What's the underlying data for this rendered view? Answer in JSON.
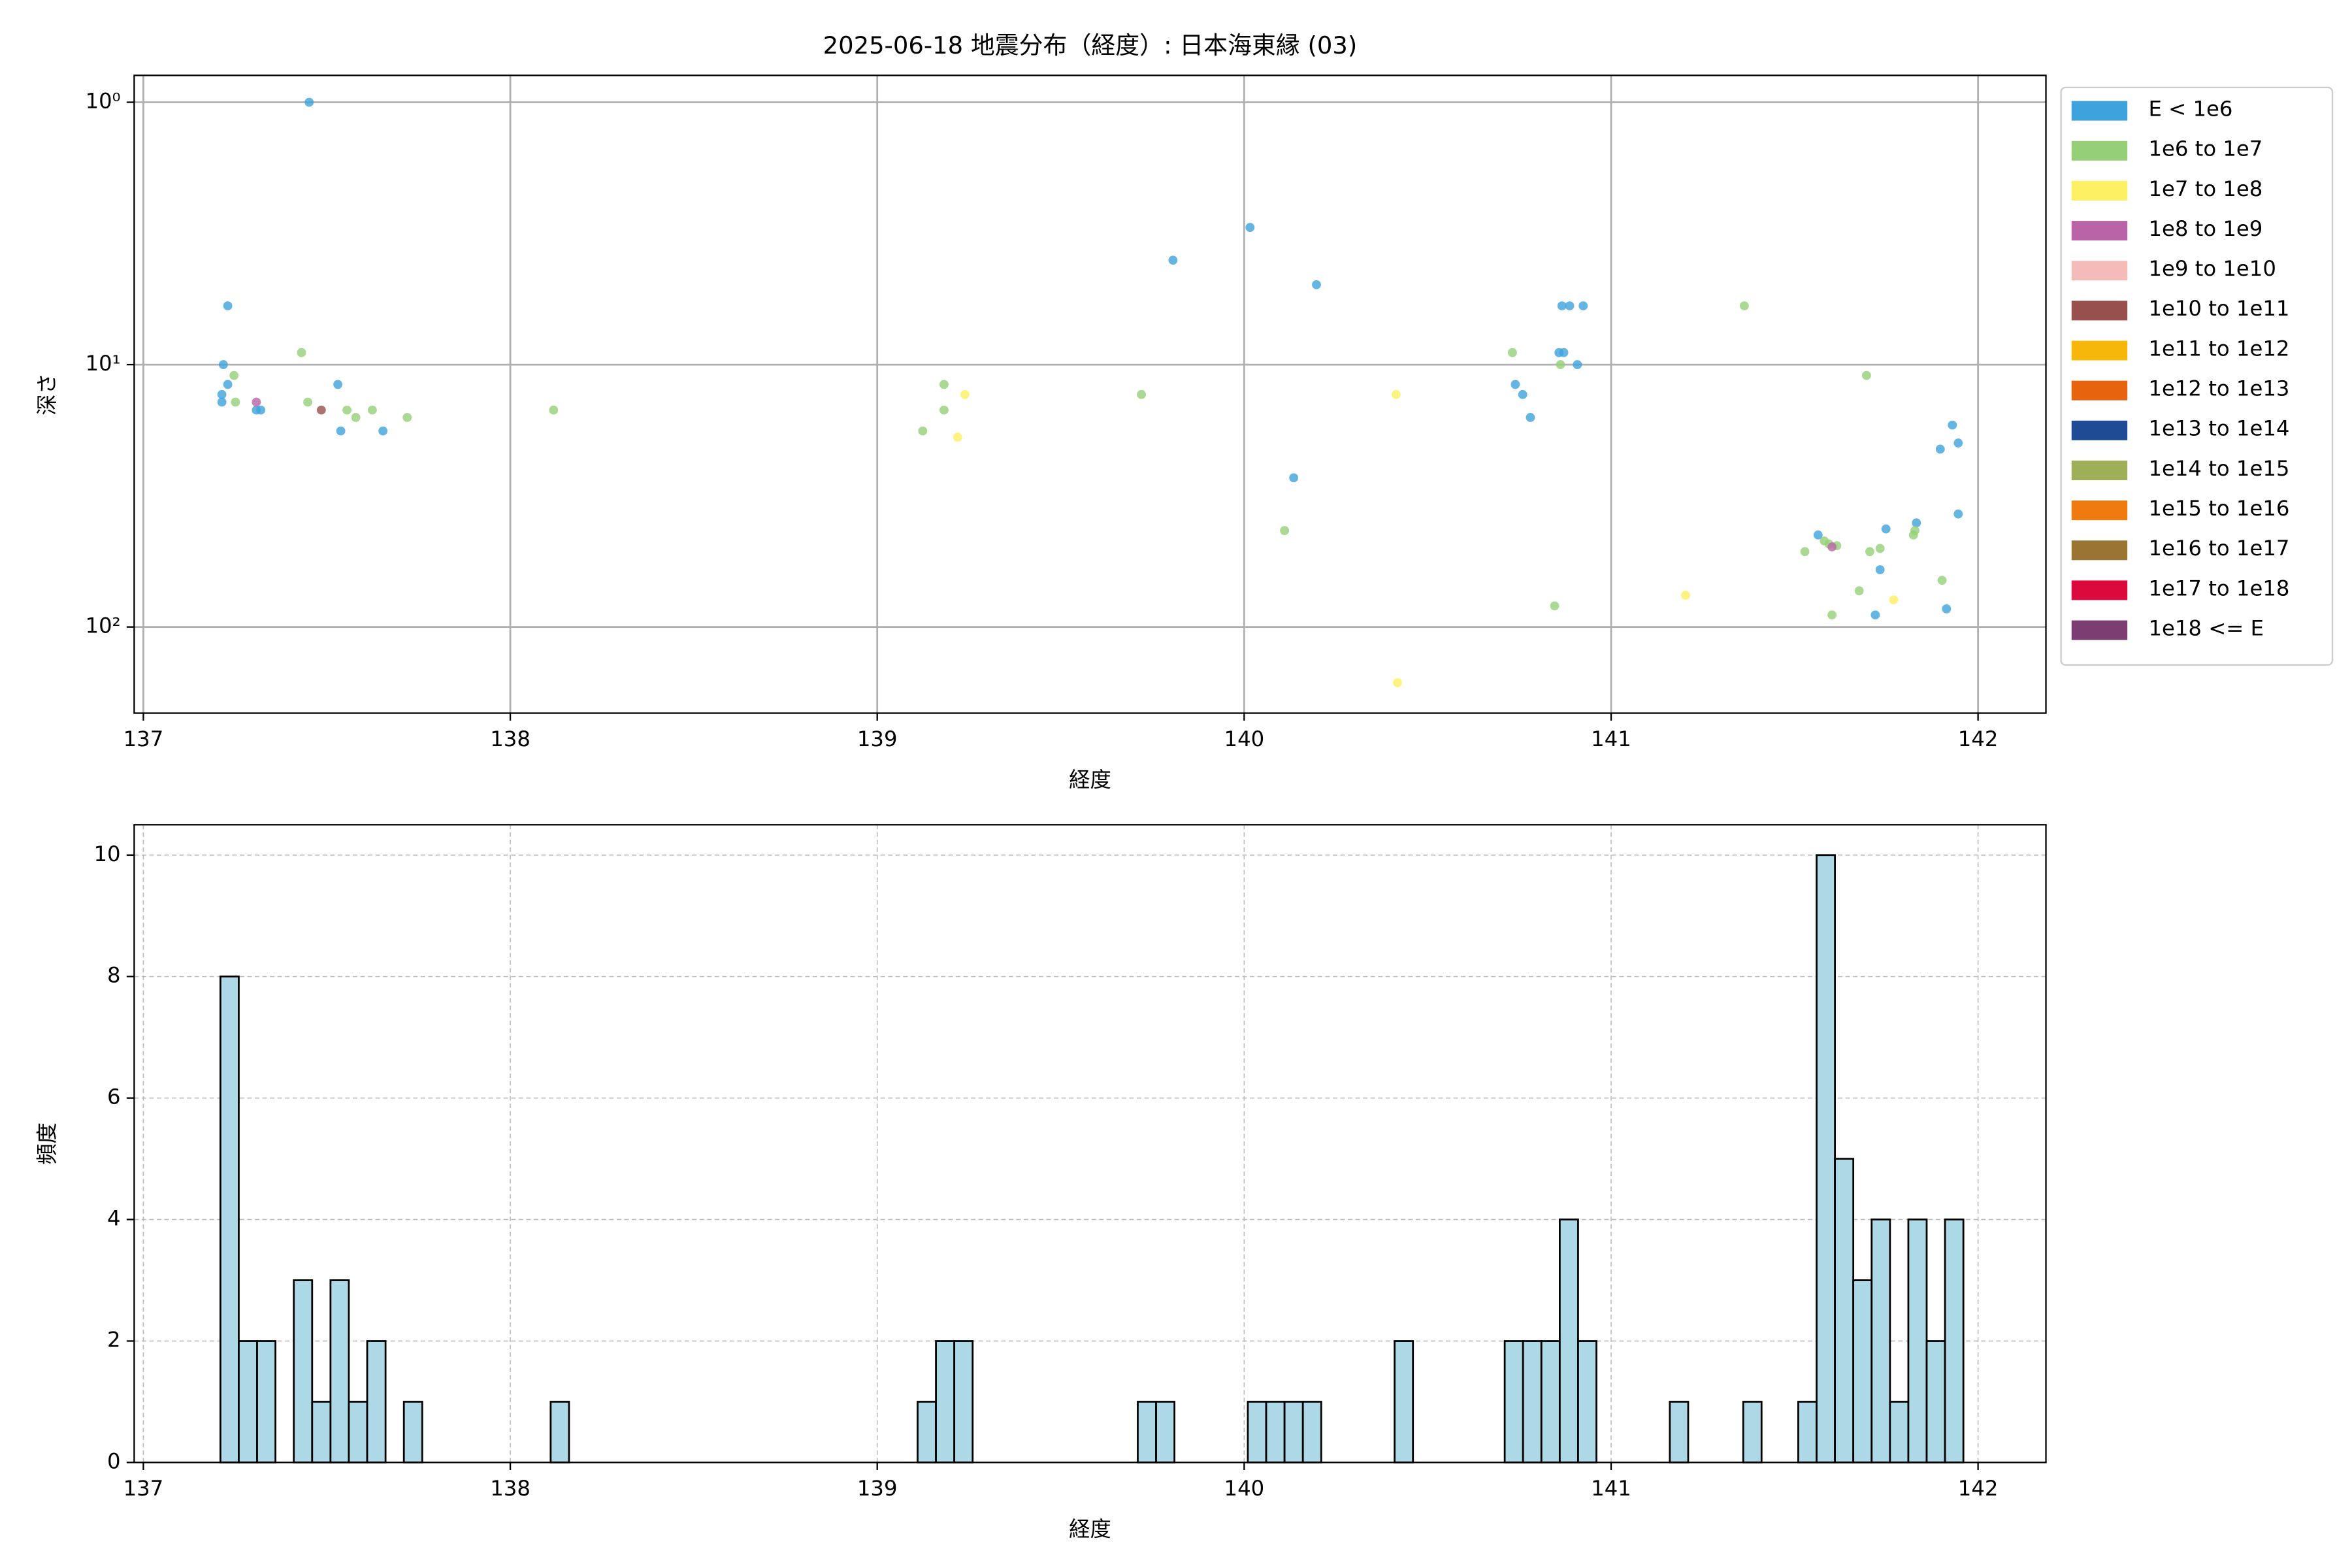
{
  "chart_data": [
    {
      "type": "scatter",
      "title": "2025-06-18 地震分布（経度）: 日本海東縁 (03)",
      "x_label": "経度",
      "y_label": "深さ",
      "xlim": [
        136.975,
        142.185
      ],
      "xticks": [
        137,
        138,
        139,
        140,
        141,
        142
      ],
      "ylim": [
        213,
        0.79
      ],
      "yscale": "log",
      "yticks": [
        {
          "value": 1,
          "label": "10⁰"
        },
        {
          "value": 10,
          "label": "10¹"
        },
        {
          "value": 100,
          "label": "10²"
        }
      ],
      "grid": true,
      "grid_style": "solid",
      "legend": "outside upper right",
      "series": [
        {
          "name": "E < 1e6",
          "color": "#3ea3dc",
          "x": [
            137.452,
            137.23,
            137.218,
            137.214,
            137.23,
            137.214,
            137.308,
            137.32,
            137.53,
            137.538,
            137.653,
            139.806,
            140.016,
            140.197,
            140.135,
            140.739,
            140.759,
            140.78,
            140.866,
            140.887,
            140.924,
            140.858,
            140.871,
            140.908,
            141.897,
            141.93,
            141.946,
            141.946,
            141.749,
            141.733,
            141.72,
            141.914,
            141.832,
            141.564
          ],
          "values": [
            1.0,
            5.97,
            10,
            13.0,
            11.9,
            13.9,
            14.9,
            14.9,
            11.9,
            17.9,
            17.9,
            4.0,
            3.0,
            4.96,
            27.0,
            11.9,
            13.0,
            15.9,
            5.97,
            5.97,
            5.97,
            9.0,
            9.0,
            10,
            21.0,
            17.0,
            19.9,
            37.1,
            42.3,
            60.5,
            90,
            85.3,
            40.1,
            44.6
          ]
        },
        {
          "name": "1e6 to 1e7",
          "color": "#95cf78",
          "x": [
            137.431,
            137.247,
            137.251,
            137.448,
            137.555,
            137.579,
            137.624,
            137.719,
            138.118,
            139.124,
            139.182,
            139.182,
            139.72,
            140.11,
            140.731,
            140.862,
            140.846,
            141.363,
            141.696,
            141.528,
            141.581,
            141.594,
            141.615,
            141.705,
            141.733,
            141.676,
            141.602,
            141.828,
            141.824,
            141.902
          ],
          "values": [
            9.0,
            11.0,
            13.9,
            13.9,
            14.9,
            15.9,
            14.9,
            15.9,
            14.9,
            17.9,
            11.9,
            14.9,
            13.0,
            42.9,
            9.0,
            10,
            83.1,
            5.97,
            11.0,
            51.6,
            47.0,
            48.3,
            49.0,
            51.6,
            50.2,
            72.8,
            90,
            42.9,
            44.6,
            66.4
          ]
        },
        {
          "name": "1e7 to 1e8",
          "color": "#fdf062",
          "x": [
            139.239,
            139.219,
            140.414,
            140.418,
            141.203,
            141.77
          ],
          "values": [
            13.0,
            18.9,
            13.0,
            163,
            75.7,
            78.8
          ]
        },
        {
          "name": "1e8 to 1e9",
          "color": "#b964a6",
          "x": [
            137.308,
            141.602
          ],
          "values": [
            13.9,
            49.5
          ]
        },
        {
          "name": "1e9 to 1e10",
          "color": "#f4bbb8",
          "x": [],
          "values": []
        },
        {
          "name": "1e10 to 1e11",
          "color": "#97504c",
          "x": [
            137.485
          ],
          "values": [
            14.9
          ]
        },
        {
          "name": "1e11 to 1e12",
          "color": "#f7b70a",
          "x": [],
          "values": []
        },
        {
          "name": "1e12 to 1e13",
          "color": "#e7630e",
          "x": [],
          "values": []
        },
        {
          "name": "1e13 to 1e14",
          "color": "#1f4b94",
          "x": [],
          "values": []
        },
        {
          "name": "1e14 to 1e15",
          "color": "#9eb057",
          "x": [],
          "values": []
        },
        {
          "name": "1e15 to 1e16",
          "color": "#ee7a10",
          "x": [],
          "values": []
        },
        {
          "name": "1e16 to 1e17",
          "color": "#9a7433",
          "x": [],
          "values": []
        },
        {
          "name": "1e17 to 1e18",
          "color": "#dc0a3c",
          "x": [],
          "values": []
        },
        {
          "name": "1e18 <= E",
          "color": "#7c3e72",
          "x": [],
          "values": []
        }
      ]
    },
    {
      "type": "histogram",
      "x_label": "経度",
      "y_label": "頻度",
      "xlim": [
        136.975,
        142.185
      ],
      "xticks": [
        137,
        138,
        139,
        140,
        141,
        142
      ],
      "ylim": [
        0,
        10.5
      ],
      "yticks": [
        0,
        2,
        4,
        6,
        8,
        10
      ],
      "grid": true,
      "grid_style": "dashed",
      "color": "#add8e6",
      "edgecolor": "#000000",
      "bins": [
        137.21,
        137.26,
        137.31,
        137.36,
        137.41,
        137.46,
        137.51,
        137.56,
        137.61,
        137.66,
        137.71,
        137.76,
        137.81,
        137.86,
        137.91,
        137.96,
        138.01,
        138.06,
        138.11,
        138.16,
        138.21,
        138.26,
        138.31,
        138.36,
        138.41,
        138.46,
        138.51,
        138.56,
        138.61,
        138.66,
        138.71,
        138.76,
        138.81,
        138.86,
        138.91,
        138.96,
        139.01,
        139.06,
        139.11,
        139.16,
        139.21,
        139.26,
        139.31,
        139.36,
        139.41,
        139.46,
        139.51,
        139.56,
        139.61,
        139.66,
        139.71,
        139.76,
        139.81,
        139.86,
        139.91,
        139.96,
        140.01,
        140.06,
        140.11,
        140.16,
        140.21,
        140.26,
        140.31,
        140.36,
        140.41,
        140.46,
        140.51,
        140.56,
        140.61,
        140.66,
        140.71,
        140.76,
        140.81,
        140.86,
        140.91,
        140.96,
        141.01,
        141.06,
        141.11,
        141.16,
        141.21,
        141.26,
        141.31,
        141.36,
        141.41,
        141.46,
        141.51,
        141.56,
        141.61,
        141.66,
        141.71,
        141.76,
        141.81,
        141.86,
        141.91,
        141.96
      ],
      "values": [
        8,
        2,
        2,
        0,
        3,
        1,
        3,
        1,
        2,
        0,
        1,
        0,
        0,
        0,
        0,
        0,
        0,
        0,
        1,
        0,
        0,
        0,
        0,
        0,
        0,
        0,
        0,
        0,
        0,
        0,
        0,
        0,
        0,
        0,
        0,
        0,
        0,
        0,
        1,
        2,
        2,
        0,
        0,
        0,
        0,
        0,
        0,
        0,
        0,
        0,
        1,
        1,
        0,
        0,
        0,
        0,
        1,
        1,
        1,
        1,
        0,
        0,
        0,
        0,
        2,
        0,
        0,
        0,
        0,
        0,
        2,
        2,
        2,
        4,
        2,
        0,
        0,
        0,
        0,
        1,
        0,
        0,
        0,
        1,
        0,
        0,
        1,
        10,
        5,
        3,
        4,
        1,
        4,
        2,
        4
      ]
    }
  ]
}
